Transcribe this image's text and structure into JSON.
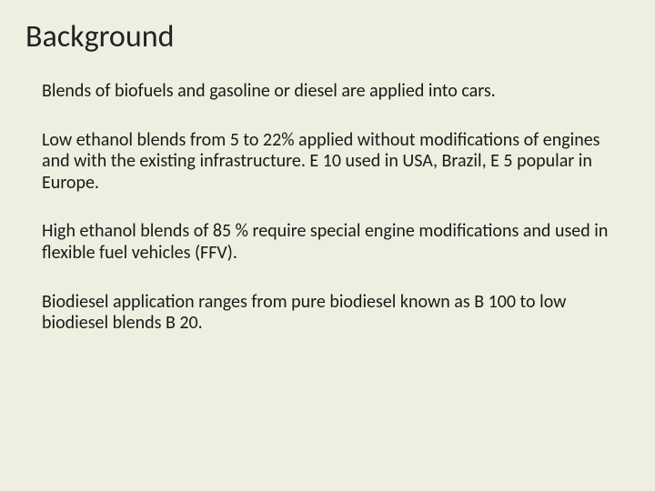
{
  "background_color": "#edefe0",
  "title": {
    "text": "Background",
    "fontsize": 34,
    "color": "#222222"
  },
  "body": {
    "fontsize": 20,
    "color": "#1a1a1a",
    "paragraphs": [
      "Blends of biofuels and gasoline or diesel are applied into cars.",
      "Low ethanol blends from 5 to 22% applied without modifications of engines and with the existing infrastructure. E 10 used in USA, Brazil,  E 5 popular in Europe.",
      "High ethanol blends of 85 % require special engine modifications and used in flexible fuel vehicles (FFV).",
      "Biodiesel application ranges from pure biodiesel known as B 100 to low biodiesel blends  B 20."
    ]
  }
}
